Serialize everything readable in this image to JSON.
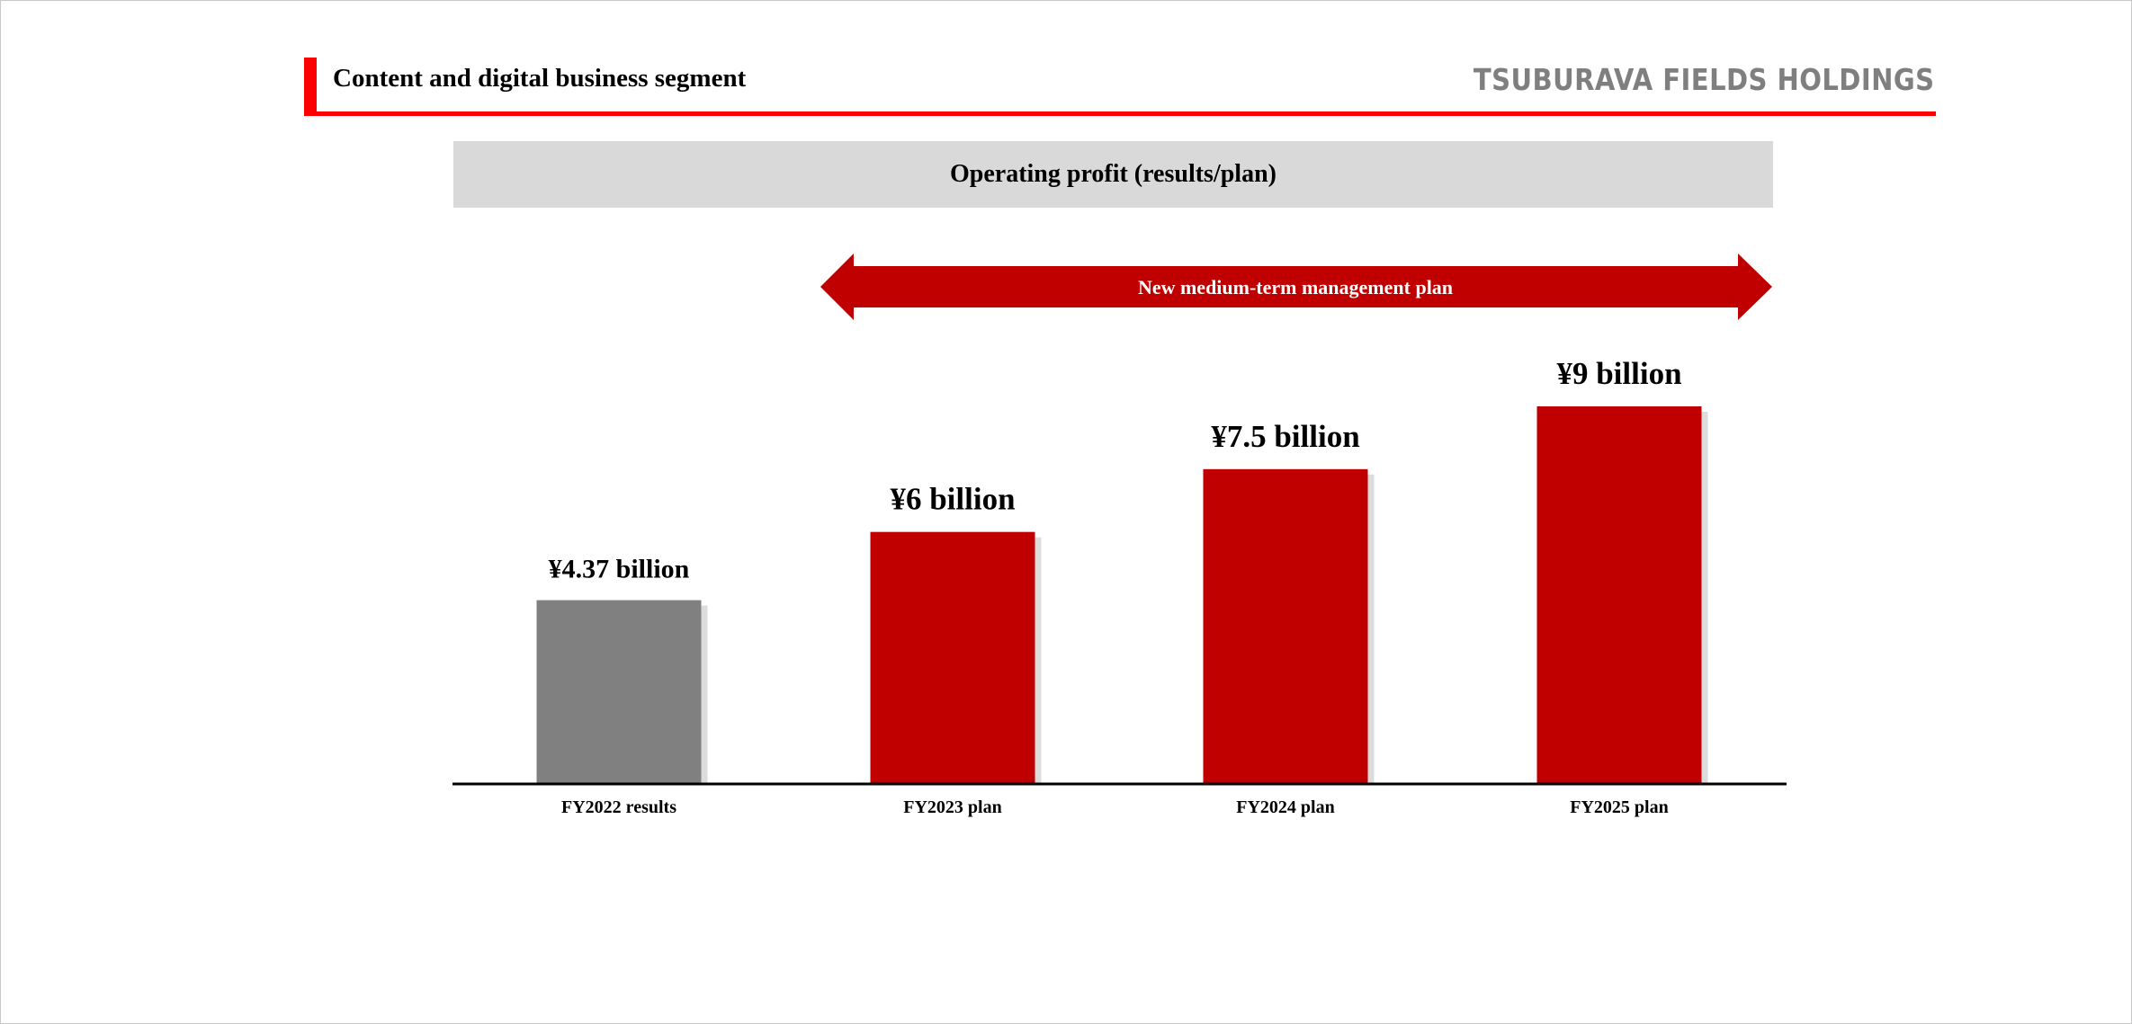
{
  "header": {
    "title": "Content and digital business segment",
    "brand": "TSUBURAVA FIELDS HOLDINGS"
  },
  "banner": {
    "title": "Operating profit (results/plan)"
  },
  "plan_arrow": {
    "label": "New medium-term management plan",
    "color": "#c00000"
  },
  "colors": {
    "accent": "#ff0000",
    "plan_bar": "#c00000",
    "result_bar": "#808080",
    "brand_gray": "#7f7f7f",
    "banner_bg": "#d9d9d9"
  },
  "chart_data": {
    "type": "bar",
    "title": "Operating profit (results/plan)",
    "categories": [
      "FY2022 results",
      "FY2023 plan",
      "FY2024 plan",
      "FY2025 plan"
    ],
    "values": [
      4.37,
      6,
      7.5,
      9
    ],
    "value_labels": [
      "¥4.37 billion",
      "¥6 billion",
      "¥7.5 billion",
      "¥9 billion"
    ],
    "bar_kinds": [
      "result",
      "plan",
      "plan",
      "plan"
    ],
    "unit": "¥ billion",
    "xlabel": "",
    "ylabel": "",
    "ylim": [
      0,
      9
    ],
    "grid": false,
    "legend": "none"
  }
}
